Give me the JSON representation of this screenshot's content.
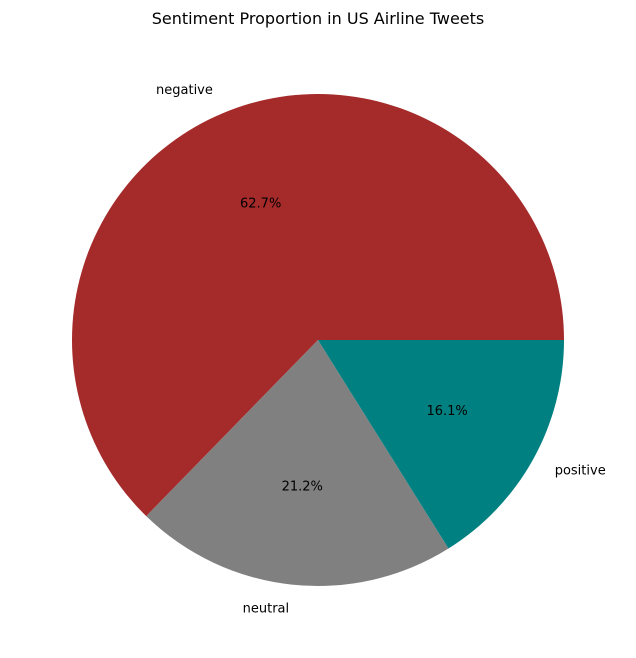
{
  "chart_data": {
    "type": "pie",
    "title": "Sentiment Proportion in US Airline Tweets",
    "categories": [
      "negative",
      "neutral",
      "positive"
    ],
    "values": [
      62.7,
      21.2,
      16.1
    ],
    "value_labels": [
      "62.7%",
      "21.2%",
      "16.1%"
    ],
    "colors": [
      "#a52a2a",
      "#808080",
      "#008080"
    ],
    "start_angle_deg": 0,
    "direction": "counterclockwise",
    "legend": "none"
  }
}
